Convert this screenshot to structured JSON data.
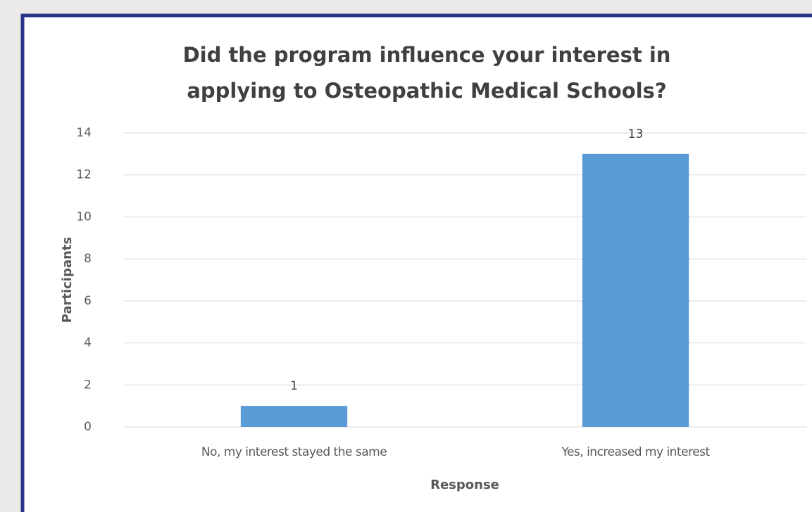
{
  "chart_data": {
    "type": "bar",
    "title": [
      "Did the program influence your interest in",
      "applying to Osteopathic Medical Schools?"
    ],
    "x_label": "Response",
    "y_label": "Participants",
    "categories": [
      "No, my interest stayed the same",
      "Yes, increased my interest"
    ],
    "values": [
      1,
      13
    ],
    "color": "#5b9bd5",
    "ylim": [
      0,
      14
    ],
    "yticks": [
      0,
      2,
      4,
      6,
      8,
      10,
      12,
      14
    ],
    "grid": true
  }
}
